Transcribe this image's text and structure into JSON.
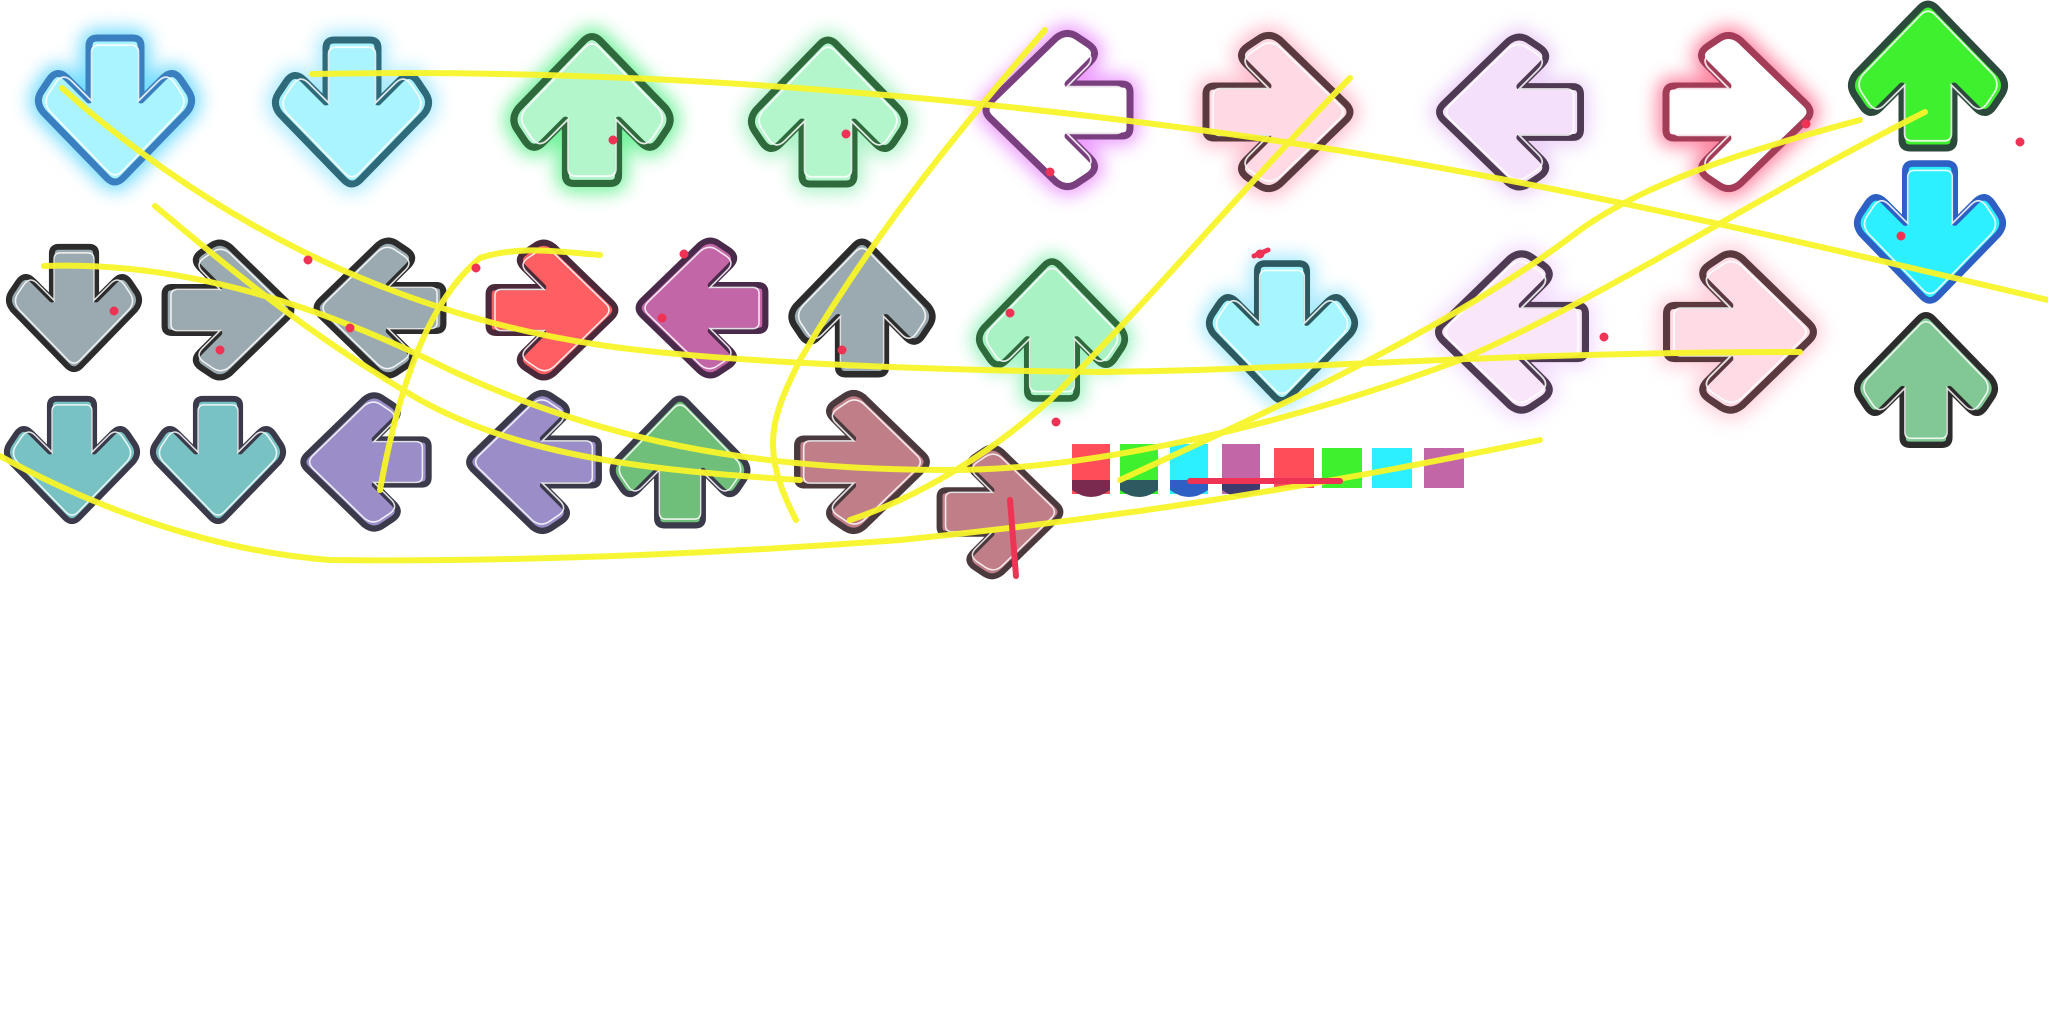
{
  "sprite_sheet": {
    "description_free": true,
    "palette": {
      "glow_blue": "#7fe8ff",
      "glow_green": "#8ff0b8",
      "glow_purple": "#e98bff",
      "glow_pink": "#ffb9c8",
      "glow_lavender": "#f1d6ff",
      "glow_rose": "#ff8fa8",
      "neon_green": "#3ef02d",
      "neon_cyan": "#2cf0ff",
      "muted_gray": "#9aaab0",
      "coral_red": "#ff5e62",
      "orchid": "#c266a8",
      "soft_teal": "#79c2c4",
      "soft_violet": "#9a8dc8",
      "soft_green": "#6fbf7a",
      "dusty_rose": "#c07f88",
      "pale_mint": "#a9f2c4",
      "pale_sky": "#a6f6ff",
      "pale_lilac": "#fae6fb",
      "pale_blush": "#ffdbe5",
      "sage": "#82c895",
      "outline_dark": "#2c2c2c",
      "outline_teal": "#2d5a60",
      "outline_green": "#2e6a3c",
      "outline_plum": "#5b3b58",
      "outline_brown": "#5a3a3e",
      "outline_blue": "#2e5fc4",
      "scribble_yellow": "#f7f52a",
      "marker_red": "#ee3355"
    },
    "arrows": [
      {
        "name": "arrow-down-glow-blue-1",
        "direction": "down",
        "fill": "#a9f4ff",
        "outline": "#3a7fc0",
        "glow": "#5cd6ff"
      },
      {
        "name": "arrow-down-glow-blue-2",
        "direction": "down",
        "fill": "#a9f4ff",
        "outline": "#2e6a7a",
        "glow": "#9de7ff"
      },
      {
        "name": "arrow-up-glow-green-1",
        "direction": "up",
        "fill": "#b3f6cc",
        "outline": "#2e6a3c",
        "glow": "#5cf08a"
      },
      {
        "name": "arrow-up-glow-green-2",
        "direction": "up",
        "fill": "#b3f6cc",
        "outline": "#2e6a3c",
        "glow": "#9ef0bd"
      },
      {
        "name": "arrow-left-glow-purple",
        "direction": "left",
        "fill": "#ffffff",
        "outline": "#7a3f7e",
        "glow": "#e98bff"
      },
      {
        "name": "arrow-right-glow-pink",
        "direction": "right",
        "fill": "#ffd9e3",
        "outline": "#5a3a3e",
        "glow": "#ffb3c6"
      },
      {
        "name": "arrow-left-glow-lavender",
        "direction": "left",
        "fill": "#f5e0fb",
        "outline": "#4e3a52",
        "glow": "#e8c9f7"
      },
      {
        "name": "arrow-right-glow-rose",
        "direction": "right",
        "fill": "#ffffff",
        "outline": "#a33c56",
        "glow": "#ff6f92"
      },
      {
        "name": "arrow-up-neon-green",
        "direction": "up",
        "fill": "#3ef02d",
        "outline": "#2c4a3c",
        "glow": null
      },
      {
        "name": "arrow-down-gray-1",
        "direction": "down",
        "fill": "#9aaab0",
        "outline": "#2c2c2c",
        "glow": null
      },
      {
        "name": "arrow-right-gray",
        "direction": "right",
        "fill": "#9aaab0",
        "outline": "#2c2c2c",
        "glow": null
      },
      {
        "name": "arrow-left-gray",
        "direction": "left",
        "fill": "#9aaab0",
        "outline": "#2c2c2c",
        "glow": null
      },
      {
        "name": "arrow-right-coral",
        "direction": "right",
        "fill": "#ff5e62",
        "outline": "#4a2a3a",
        "glow": null
      },
      {
        "name": "arrow-left-orchid",
        "direction": "left",
        "fill": "#c266a8",
        "outline": "#4a2a4a",
        "glow": null
      },
      {
        "name": "arrow-up-gray",
        "direction": "up",
        "fill": "#9aaab0",
        "outline": "#2c2c2c",
        "glow": null
      },
      {
        "name": "arrow-up-glow-mint",
        "direction": "up",
        "fill": "#a9f2c4",
        "outline": "#2e6a3c",
        "glow": "#8ff0b8"
      },
      {
        "name": "arrow-down-glow-sky",
        "direction": "down",
        "fill": "#a6f6ff",
        "outline": "#2d5a60",
        "glow": "#9de7ff"
      },
      {
        "name": "arrow-left-glow-lilac",
        "direction": "left",
        "fill": "#fae6fb",
        "outline": "#4e3a52",
        "glow": "#f1d6ff"
      },
      {
        "name": "arrow-right-glow-blush",
        "direction": "right",
        "fill": "#ffdbe5",
        "outline": "#5a3a3e",
        "glow": "#ffc7d6"
      },
      {
        "name": "arrow-down-neon-cyan",
        "direction": "down",
        "fill": "#2cf0ff",
        "outline": "#2e5fc4",
        "glow": null
      },
      {
        "name": "arrow-down-teal-1",
        "direction": "down",
        "fill": "#79c2c4",
        "outline": "#3a3a4a",
        "glow": null
      },
      {
        "name": "arrow-down-teal-2",
        "direction": "down",
        "fill": "#79c2c4",
        "outline": "#3a3a4a",
        "glow": null
      },
      {
        "name": "arrow-left-violet-1",
        "direction": "left",
        "fill": "#9a8dc8",
        "outline": "#3a3a4a",
        "glow": null
      },
      {
        "name": "arrow-left-violet-2",
        "direction": "left",
        "fill": "#9a8dc8",
        "outline": "#3a3a4a",
        "glow": null
      },
      {
        "name": "arrow-up-soft-green",
        "direction": "up",
        "fill": "#6fbf7a",
        "outline": "#3a3a4a",
        "glow": null
      },
      {
        "name": "arrow-right-dusty-rose-1",
        "direction": "right",
        "fill": "#c07f88",
        "outline": "#4a3a3e",
        "glow": null
      },
      {
        "name": "arrow-right-dusty-rose-2",
        "direction": "right",
        "fill": "#c07f88",
        "outline": "#4a3a3e",
        "glow": null
      },
      {
        "name": "arrow-up-sage",
        "direction": "up",
        "fill": "#82c895",
        "outline": "#2c2c2c",
        "glow": null
      }
    ],
    "hold_tails": [
      {
        "name": "hold-tail-red",
        "fill": "#ff4d5a",
        "cap": "#7a2a4e"
      },
      {
        "name": "hold-tail-green",
        "fill": "#3ef02d",
        "cap": "#2d5a60"
      },
      {
        "name": "hold-tail-cyan",
        "fill": "#2cf0ff",
        "cap": "#2e5fc4"
      },
      {
        "name": "hold-tail-purple",
        "fill": "#c266a8",
        "cap": "#3d3a6e"
      },
      {
        "name": "hold-piece-red",
        "fill": "#ff4d5a",
        "cap": null
      },
      {
        "name": "hold-piece-green",
        "fill": "#3ef02d",
        "cap": null
      },
      {
        "name": "hold-piece-cyan",
        "fill": "#2cf0ff",
        "cap": null
      },
      {
        "name": "hold-piece-purple",
        "fill": "#c266a8",
        "cap": null
      }
    ]
  }
}
